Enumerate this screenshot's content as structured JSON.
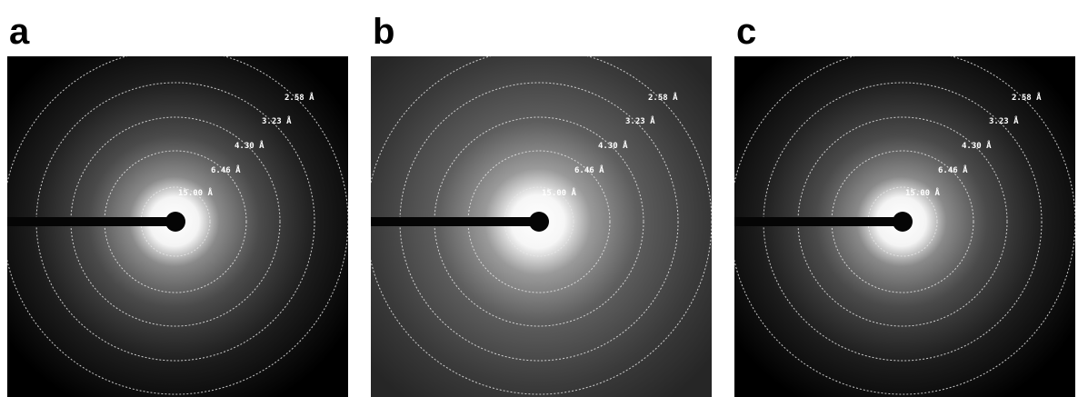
{
  "panels": [
    {
      "label": "a",
      "rings": [
        "2.58 Å",
        "3.23 Å",
        "4.30 Å",
        "6.46 Å",
        "15.00 Å"
      ]
    },
    {
      "label": "b",
      "rings": [
        "2.58 Å",
        "3.23 Å",
        "4.30 Å",
        "6.46 Å",
        "15.00 Å"
      ]
    },
    {
      "label": "c",
      "rings": [
        "2.58 Å",
        "3.23 Å",
        "4.30 Å",
        "6.46 Å",
        "15.00 Å"
      ]
    }
  ]
}
